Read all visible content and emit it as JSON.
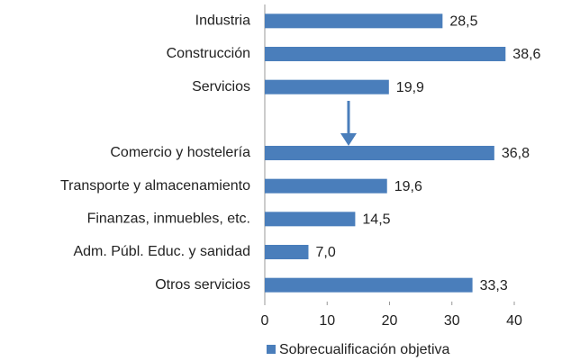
{
  "chart_data": {
    "type": "bar",
    "orientation": "horizontal",
    "categories": [
      "Industria",
      "Construcción",
      "Servicios",
      null,
      "Comercio y hostelería",
      "Transporte y almacenamiento",
      "Finanzas, inmuebles, etc.",
      "Adm. Públ. Educ. y sanidad",
      "Otros servicios"
    ],
    "series": [
      {
        "name": "Sobrecualificación objetiva",
        "color": "#4a7ebb",
        "values": [
          28.5,
          38.6,
          19.9,
          null,
          36.8,
          19.6,
          14.5,
          7.0,
          33.3
        ],
        "value_labels": [
          "28,5",
          "38,6",
          "19,9",
          null,
          "36,8",
          "19,6",
          "14,5",
          "7,0",
          "33,3"
        ]
      }
    ],
    "xlim": [
      0,
      40
    ],
    "xticks": [
      0,
      10,
      20,
      30,
      40
    ],
    "grid": false,
    "legend": "bottom"
  }
}
